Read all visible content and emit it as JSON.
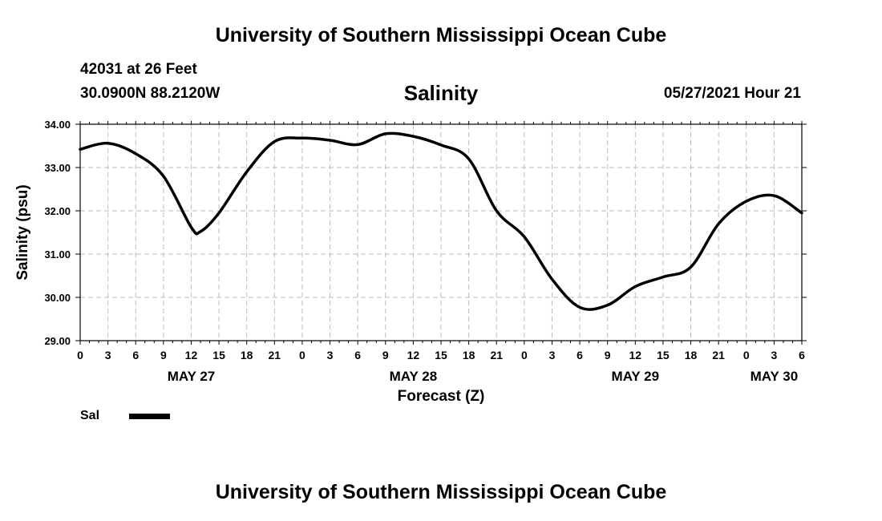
{
  "header": {
    "title": "University of Southern Mississippi Ocean Cube",
    "station": "42031 at 26 Feet",
    "coords": "30.0900N  88.2120W",
    "parameter": "Salinity",
    "timestamp": "05/27/2021 Hour 21"
  },
  "footer": {
    "title": "University of Southern Mississippi Ocean Cube"
  },
  "legend": {
    "label": "Sal"
  },
  "chart_data": {
    "type": "line",
    "title": "Salinity",
    "xlabel": "Forecast (Z)",
    "ylabel": "Salinity (psu)",
    "ylim": [
      29.0,
      34.0
    ],
    "xlim_hours": [
      0,
      78
    ],
    "y_ticks": [
      "29.00",
      "30.00",
      "31.00",
      "32.00",
      "33.00",
      "34.00"
    ],
    "x_tick_labels": [
      "0",
      "3",
      "6",
      "9",
      "12",
      "15",
      "18",
      "21",
      "0",
      "3",
      "6",
      "9",
      "12",
      "15",
      "18",
      "21",
      "0",
      "3",
      "6",
      "9",
      "12",
      "15",
      "18",
      "21",
      "0",
      "3",
      "6"
    ],
    "date_labels": [
      {
        "label": "MAY 27",
        "hour": 12
      },
      {
        "label": "MAY 28",
        "hour": 36
      },
      {
        "label": "MAY 29",
        "hour": 60
      },
      {
        "label": "MAY 30",
        "hour": 75
      }
    ],
    "grid": true,
    "series": [
      {
        "name": "Sal",
        "color": "#000000",
        "x": [
          0,
          3,
          6,
          9,
          12,
          13,
          15,
          18,
          21,
          24,
          27,
          30,
          33,
          36,
          39,
          42,
          45,
          48,
          51,
          54,
          57,
          60,
          63,
          66,
          69,
          72,
          75,
          78
        ],
        "y": [
          33.42,
          33.56,
          33.32,
          32.8,
          31.62,
          31.52,
          31.95,
          32.9,
          33.6,
          33.68,
          33.63,
          33.53,
          33.78,
          33.72,
          33.52,
          33.2,
          32.0,
          31.4,
          30.42,
          29.77,
          29.82,
          30.25,
          30.47,
          30.7,
          31.7,
          32.22,
          32.35,
          31.95
        ]
      }
    ]
  }
}
